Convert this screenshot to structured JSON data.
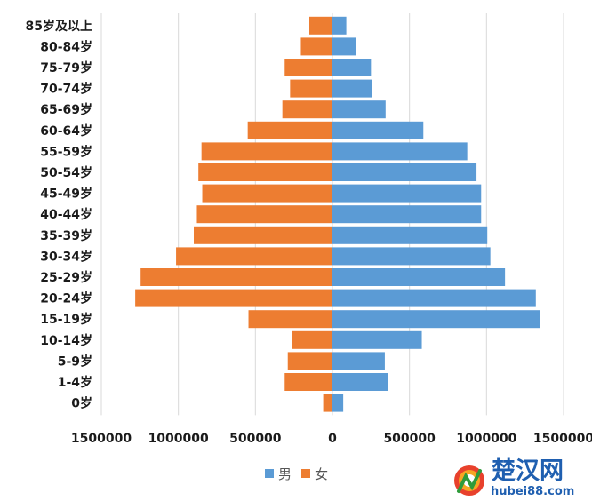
{
  "chart_data": {
    "type": "bar",
    "orientation": "horizontal-butterfly",
    "categories": [
      "85岁及以上",
      "80-84岁",
      "75-79岁",
      "70-74岁",
      "65-69岁",
      "60-64岁",
      "55-59岁",
      "50-54岁",
      "45-49岁",
      "40-44岁",
      "35-39岁",
      "30-34岁",
      "25-29岁",
      "20-24岁",
      "15-19岁",
      "10-14岁",
      "5-9岁",
      "1-4岁",
      "0岁"
    ],
    "series": [
      {
        "name": "男",
        "color": "#5b9bd5",
        "side": "right",
        "values": [
          90000,
          150000,
          250000,
          255000,
          345000,
          590000,
          875000,
          935000,
          965000,
          965000,
          1005000,
          1025000,
          1120000,
          1320000,
          1345000,
          580000,
          340000,
          360000,
          70000
        ]
      },
      {
        "name": "女",
        "color": "#ed7d31",
        "side": "left",
        "values": [
          150000,
          205000,
          310000,
          275000,
          325000,
          550000,
          850000,
          870000,
          845000,
          880000,
          900000,
          1015000,
          1245000,
          1280000,
          545000,
          260000,
          290000,
          310000,
          60000
        ]
      }
    ],
    "xaxis": {
      "ticks": [
        -1500000,
        -1000000,
        -500000,
        0,
        500000,
        1000000,
        1500000
      ],
      "tick_labels": [
        "1500000",
        "1000000",
        "500000",
        "0",
        "500000",
        "1000000",
        "1500000"
      ],
      "range": [
        -1500000,
        1500000
      ]
    },
    "grid": true,
    "legend_position": "bottom"
  },
  "watermark": {
    "cn_text": "楚汉网",
    "url_text": "hubei88.com"
  }
}
